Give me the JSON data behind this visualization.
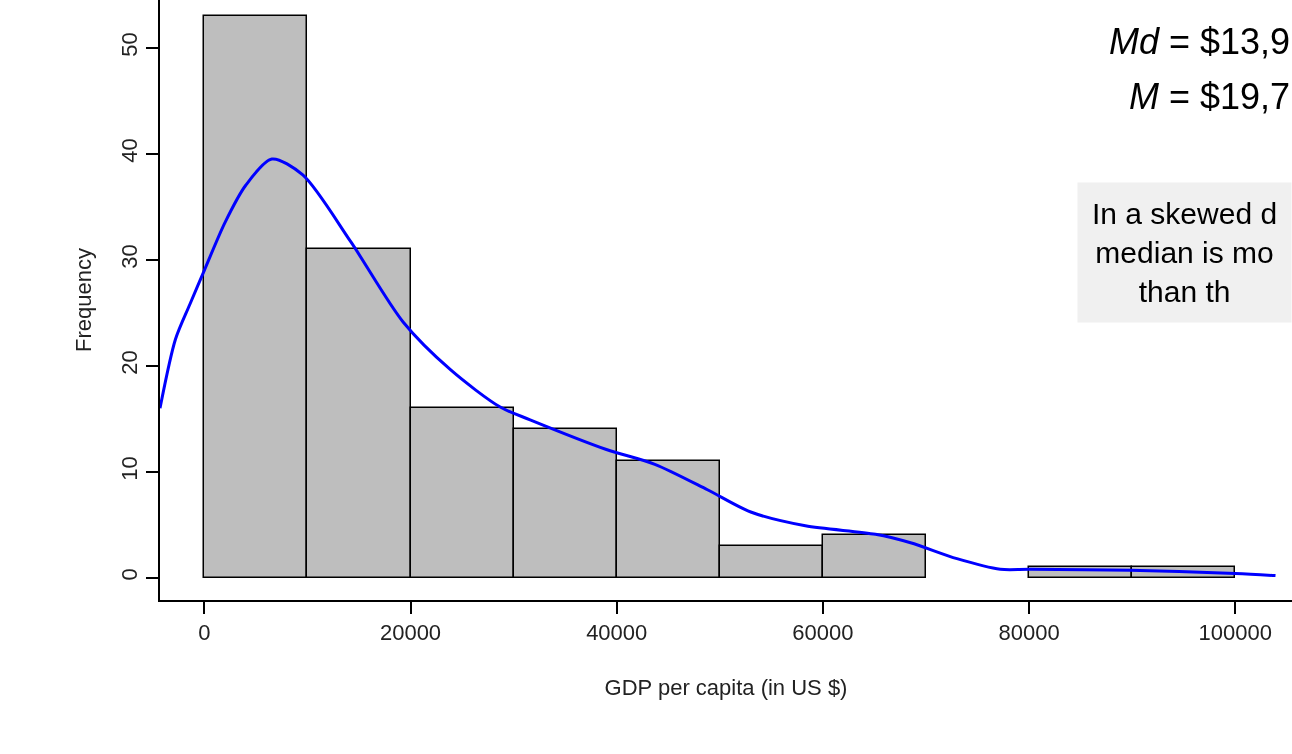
{
  "chart_data": {
    "type": "histogram",
    "xlabel": "GDP per capita (in US $)",
    "ylabel": "Frequency",
    "bins": [
      0,
      10000,
      20000,
      30000,
      40000,
      50000,
      60000,
      70000,
      80000,
      90000,
      100000
    ],
    "values": [
      53,
      31,
      16,
      14,
      11,
      3,
      4,
      0,
      1,
      1
    ],
    "color": "#bebebe",
    "series": [
      {
        "type": "line",
        "color": "#0000ff",
        "x": [
          -4300,
          -2800,
          -1400,
          0,
          2000,
          4000,
          6550,
          9550,
          14200,
          19300,
          23900,
          28700,
          31600,
          39000,
          43700,
          48800,
          53000,
          58300,
          65100,
          68500,
          73000,
          77200,
          80100,
          89800,
          100000,
          103900
        ],
        "values": [
          16,
          22.5,
          25.8,
          29,
          33.5,
          37,
          39.5,
          38,
          31.7,
          24.1,
          19.6,
          16.1,
          14.9,
          12.1,
          10.7,
          8.3,
          6.2,
          4.9,
          4.1,
          3.3,
          1.8,
          0.8,
          0.8,
          0.7,
          0.4,
          0.2
        ]
      }
    ],
    "xlim": [
      -4300,
      105500
    ],
    "xticks": [
      0,
      20000,
      40000,
      60000,
      80000,
      100000
    ],
    "ylim": [
      -2.1,
      54.5
    ],
    "yticks": [
      0,
      10,
      20,
      30,
      40,
      50
    ],
    "annotations": [
      "Md = $13,9",
      "M = $19,7",
      "In a skewed d\nmedian is mo\nthan th"
    ]
  }
}
